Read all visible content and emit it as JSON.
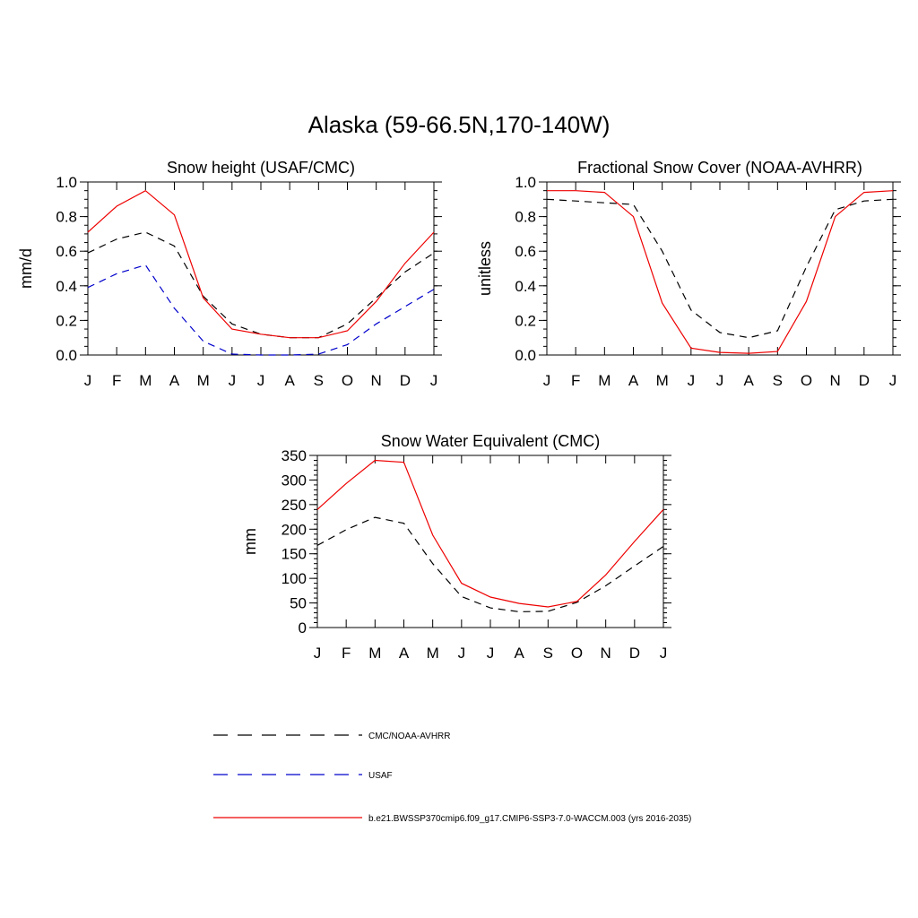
{
  "figure_title": "Alaska (59-66.5N,170-140W)",
  "months": [
    "J",
    "F",
    "M",
    "A",
    "M",
    "J",
    "J",
    "A",
    "S",
    "O",
    "N",
    "D",
    "J"
  ],
  "styles": {
    "obs": {
      "color": "#000000",
      "dash": "8 6"
    },
    "usaf": {
      "color": "#0000cc",
      "dash": "8 6"
    },
    "model": {
      "color": "#ee0000",
      "dash": ""
    }
  },
  "legend": [
    {
      "key": "obs",
      "label": "CMC/NOAA-AVHRR"
    },
    {
      "key": "usaf",
      "label": "USAF"
    },
    {
      "key": "model",
      "label": "b.e21.BWSSP370cmip6.f09_g17.CMIP6-SSP3-7.0-WACCM.003 (yrs 2016-2035)"
    }
  ],
  "chart_data": [
    {
      "type": "line",
      "title": "Snow height (USAF/CMC)",
      "ylabel": "mm/d",
      "ylim": [
        0,
        1.0
      ],
      "yticks": [
        0.0,
        0.2,
        0.4,
        0.6,
        0.8,
        1.0
      ],
      "ytick_labels": [
        "0.0",
        "0.2",
        "0.4",
        "0.6",
        "0.8",
        "1.0"
      ],
      "yminor": 0.05,
      "series": [
        {
          "key": "obs",
          "values": [
            0.59,
            0.67,
            0.71,
            0.63,
            0.34,
            0.18,
            0.12,
            0.1,
            0.1,
            0.18,
            0.33,
            0.48,
            0.59
          ]
        },
        {
          "key": "usaf",
          "values": [
            0.39,
            0.47,
            0.52,
            0.27,
            0.08,
            0.005,
            0.0,
            0.0,
            0.005,
            0.06,
            0.18,
            0.28,
            0.38
          ]
        },
        {
          "key": "model",
          "values": [
            0.71,
            0.86,
            0.95,
            0.81,
            0.33,
            0.15,
            0.12,
            0.1,
            0.1,
            0.14,
            0.31,
            0.53,
            0.71
          ]
        }
      ]
    },
    {
      "type": "line",
      "title": "Fractional Snow Cover (NOAA-AVHRR)",
      "ylabel": "unitless",
      "ylim": [
        0,
        1.0
      ],
      "yticks": [
        0.0,
        0.2,
        0.4,
        0.6,
        0.8,
        1.0
      ],
      "ytick_labels": [
        "0.0",
        "0.2",
        "0.4",
        "0.6",
        "0.8",
        "1.0"
      ],
      "yminor": 0.05,
      "series": [
        {
          "key": "obs",
          "values": [
            0.9,
            0.89,
            0.88,
            0.87,
            0.6,
            0.26,
            0.13,
            0.1,
            0.14,
            0.51,
            0.84,
            0.89,
            0.9
          ]
        },
        {
          "key": "model",
          "values": [
            0.95,
            0.95,
            0.94,
            0.8,
            0.3,
            0.04,
            0.015,
            0.01,
            0.02,
            0.31,
            0.8,
            0.94,
            0.95
          ]
        }
      ]
    },
    {
      "type": "line",
      "title": "Snow Water Equivalent (CMC)",
      "ylabel": "mm",
      "ylim": [
        0,
        350
      ],
      "yticks": [
        0,
        50,
        100,
        150,
        200,
        250,
        300,
        350
      ],
      "ytick_labels": [
        "0",
        "50",
        "100",
        "150",
        "200",
        "250",
        "300",
        "350"
      ],
      "yminor": 10,
      "series": [
        {
          "key": "obs",
          "values": [
            167,
            199,
            224,
            212,
            130,
            63,
            40,
            32,
            33,
            51,
            85,
            125,
            165
          ]
        },
        {
          "key": "model",
          "values": [
            240,
            293,
            340,
            336,
            188,
            90,
            62,
            49,
            42,
            53,
            107,
            175,
            240
          ]
        }
      ]
    }
  ]
}
